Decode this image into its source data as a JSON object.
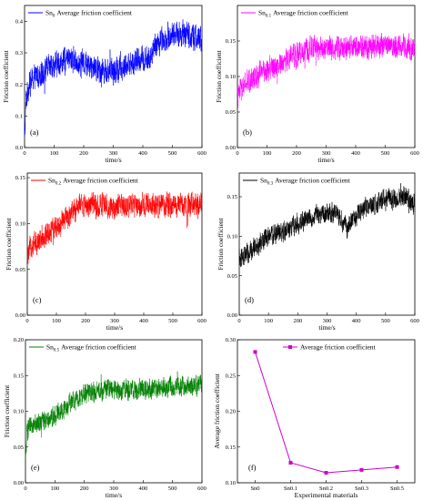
{
  "chart_data": [
    {
      "type": "line",
      "panel_label": "(a)",
      "legend": "Average friction coefficient",
      "legend_prefix": "Sn",
      "legend_sub": "0",
      "color": "#0000ff",
      "xlabel": "time/s",
      "ylabel": "Friction coefficient",
      "xlim": [
        0,
        600
      ],
      "ylim": [
        0,
        0.45
      ],
      "xticks": [
        "0",
        "100",
        "200",
        "300",
        "400",
        "500",
        "600"
      ],
      "yticks": [
        "0.0",
        "0.1",
        "0.2",
        "0.3",
        "0.4"
      ],
      "trend": {
        "x": [
          0,
          5,
          15,
          30,
          60,
          100,
          150,
          200,
          250,
          300,
          350,
          400,
          425,
          440,
          460,
          500,
          550,
          600
        ],
        "y": [
          0.02,
          0.15,
          0.2,
          0.22,
          0.24,
          0.26,
          0.28,
          0.27,
          0.25,
          0.24,
          0.26,
          0.28,
          0.28,
          0.32,
          0.34,
          0.36,
          0.36,
          0.34
        ]
      },
      "noise": 0.035
    },
    {
      "type": "line",
      "panel_label": "(b)",
      "legend": "Average friction coefficient",
      "legend_prefix": "Sn",
      "legend_sub": "0.1",
      "color": "#ff00ff",
      "xlabel": "time/s",
      "ylabel": "Friction coefficient",
      "xlim": [
        0,
        600
      ],
      "ylim": [
        0,
        0.2
      ],
      "xticks": [
        "0",
        "100",
        "200",
        "300",
        "400",
        "500",
        "600"
      ],
      "yticks": [
        "0.00",
        "0.05",
        "0.10",
        "0.15"
      ],
      "trend": {
        "x": [
          0,
          10,
          30,
          60,
          100,
          150,
          200,
          250,
          300,
          400,
          500,
          600
        ],
        "y": [
          0.07,
          0.08,
          0.09,
          0.1,
          0.11,
          0.12,
          0.13,
          0.14,
          0.14,
          0.14,
          0.145,
          0.14
        ]
      },
      "noise": 0.014
    },
    {
      "type": "line",
      "panel_label": "(c)",
      "legend": "Average friction coefficient",
      "legend_prefix": "Sn",
      "legend_sub": "0.2",
      "color": "#ff0000",
      "xlabel": "time/s",
      "ylabel": "Friction coefficient",
      "xlim": [
        0,
        600
      ],
      "ylim": [
        0,
        0.155
      ],
      "xticks": [
        "0",
        "100",
        "200",
        "300",
        "400",
        "500",
        "600"
      ],
      "yticks": [
        "0.00",
        "0.05",
        "0.10",
        "0.15"
      ],
      "trend": {
        "x": [
          0,
          10,
          50,
          100,
          150,
          180,
          200,
          250,
          300,
          400,
          500,
          600
        ],
        "y": [
          0.06,
          0.075,
          0.085,
          0.095,
          0.11,
          0.12,
          0.12,
          0.12,
          0.118,
          0.12,
          0.12,
          0.122
        ]
      },
      "noise": 0.011
    },
    {
      "type": "line",
      "panel_label": "(d)",
      "legend": "Average friction coefficient",
      "legend_prefix": "Sn",
      "legend_sub": "0.3",
      "color": "#000000",
      "xlabel": "time/s",
      "ylabel": "Friction coefficient",
      "xlim": [
        0,
        600
      ],
      "ylim": [
        0,
        0.18
      ],
      "xticks": [
        "0",
        "100",
        "200",
        "300",
        "400",
        "500",
        "600"
      ],
      "yticks": [
        "0.00",
        "0.05",
        "0.10",
        "0.15"
      ],
      "trend": {
        "x": [
          0,
          20,
          50,
          100,
          150,
          200,
          250,
          300,
          340,
          370,
          390,
          420,
          500,
          560,
          600
        ],
        "y": [
          0.07,
          0.075,
          0.085,
          0.1,
          0.105,
          0.115,
          0.125,
          0.13,
          0.125,
          0.11,
          0.12,
          0.135,
          0.145,
          0.15,
          0.14
        ]
      },
      "noise": 0.011
    },
    {
      "type": "line",
      "panel_label": "(e)",
      "legend": "Average friction coefficient",
      "legend_prefix": "Sn",
      "legend_sub": "0.5",
      "color": "#008000",
      "xlabel": "time/s",
      "ylabel": "Friction coefficient",
      "xlim": [
        0,
        600
      ],
      "ylim": [
        0,
        0.2
      ],
      "xticks": [
        "0",
        "100",
        "200",
        "300",
        "400",
        "500",
        "600"
      ],
      "yticks": [
        "0.00",
        "0.05",
        "0.10",
        "0.15",
        "0.20"
      ],
      "trend": {
        "x": [
          0,
          5,
          20,
          50,
          100,
          150,
          200,
          250,
          300,
          400,
          500,
          600
        ],
        "y": [
          0.03,
          0.07,
          0.08,
          0.085,
          0.095,
          0.11,
          0.125,
          0.13,
          0.13,
          0.13,
          0.135,
          0.135
        ]
      },
      "noise": 0.012
    },
    {
      "type": "line",
      "panel_label": "(f)",
      "legend": "Average friction coefficient",
      "color": "#cc00cc",
      "xlabel": "Experimental materials",
      "ylabel": "Average friction coefficient",
      "categories": [
        "Sn0",
        "Sn0.1",
        "Sn0.2",
        "Sn0.3",
        "Sn0.5"
      ],
      "values": [
        0.283,
        0.128,
        0.114,
        0.118,
        0.122
      ],
      "ylim": [
        0.1,
        0.3
      ],
      "yticks": [
        "0.10",
        "0.15",
        "0.20",
        "0.25",
        "0.30"
      ]
    }
  ]
}
